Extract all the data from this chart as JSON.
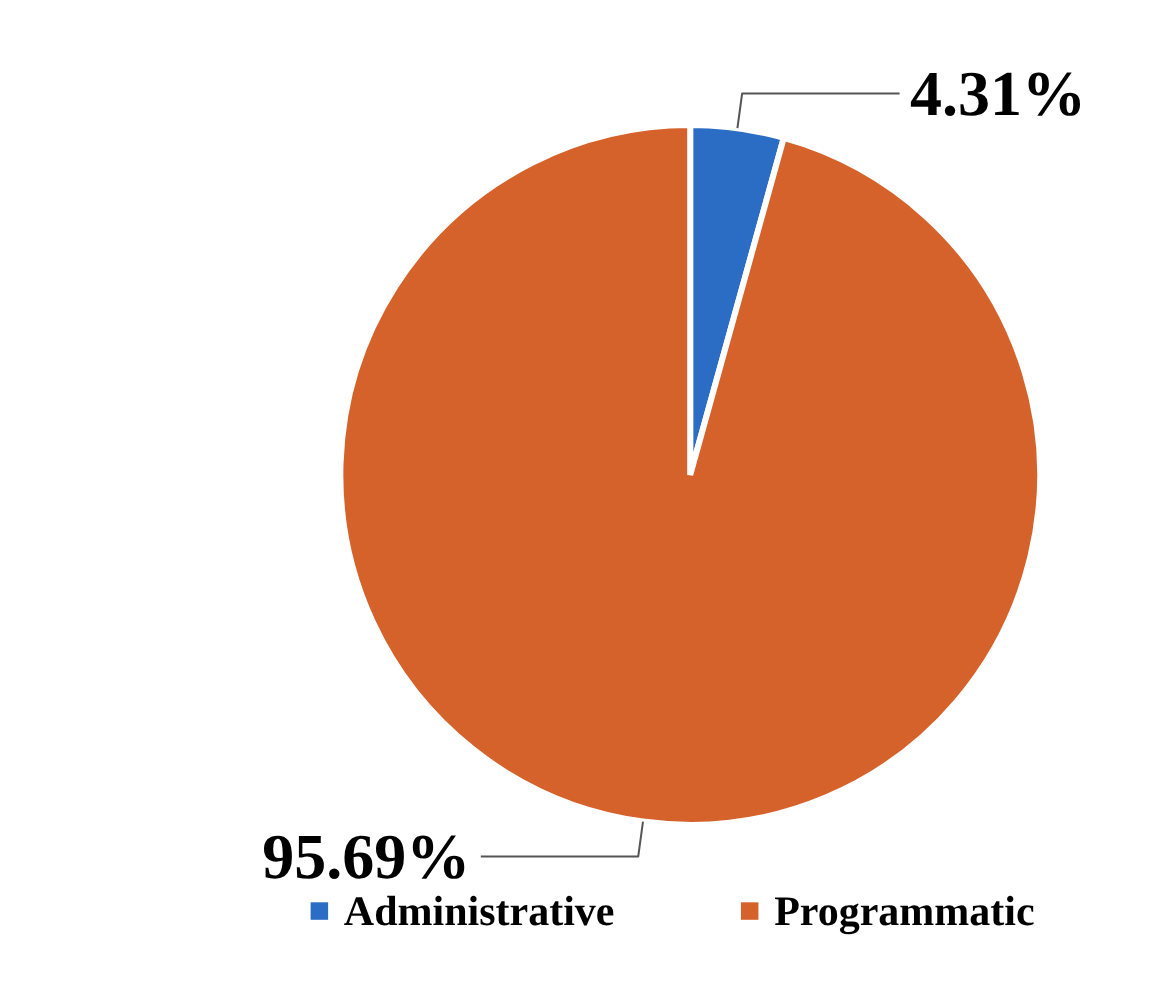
{
  "chart_data": {
    "type": "pie",
    "categories": [
      "Administrative",
      "Programmatic"
    ],
    "values": [
      4.31,
      95.69
    ],
    "colors": [
      "#2b6cc4",
      "#d5612b"
    ],
    "value_labels": [
      "4.31%",
      "95.69%"
    ],
    "legend": "bottom"
  }
}
